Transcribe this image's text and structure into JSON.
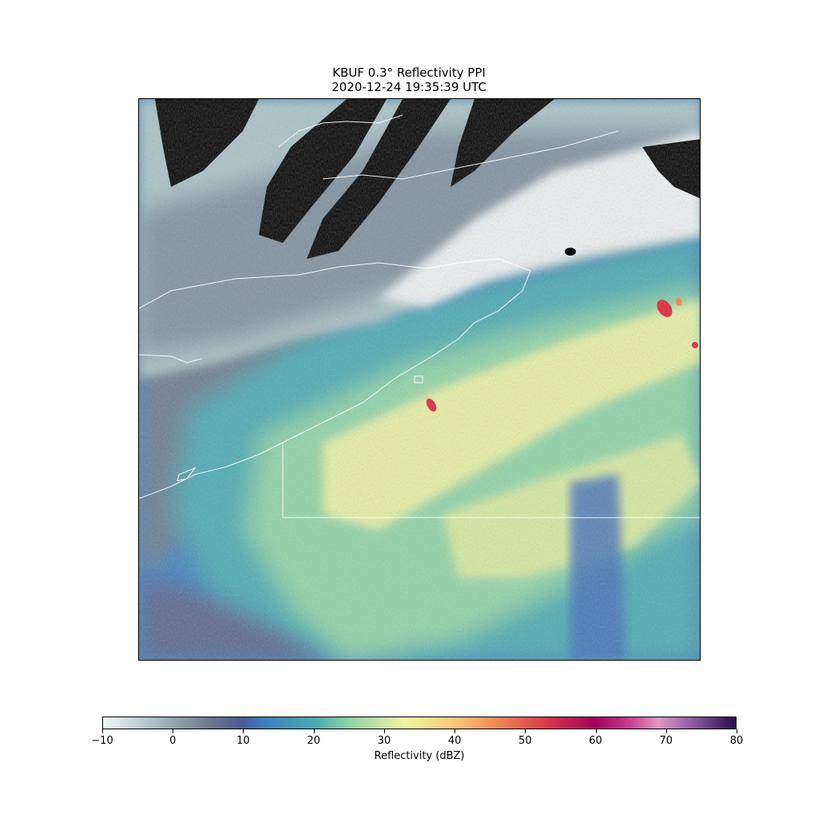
{
  "figure": {
    "title_line1": "KBUF 0.3° Reflectivity PPI",
    "title_line2": "2020-12-24 19:35:39 UTC"
  },
  "colorbar": {
    "label": "Reflectivity (dBZ)",
    "ticks": [
      "−10",
      "0",
      "10",
      "20",
      "30",
      "40",
      "50",
      "60",
      "70",
      "80"
    ],
    "min": -10,
    "max": 80,
    "stops": [
      {
        "value": -10,
        "color": "#f4f8f8"
      },
      {
        "value": -3,
        "color": "#a9c2c6"
      },
      {
        "value": 5,
        "color": "#6c7b8e"
      },
      {
        "value": 10,
        "color": "#4a5a94"
      },
      {
        "value": 13,
        "color": "#3f7fbf"
      },
      {
        "value": 20,
        "color": "#4aa9b2"
      },
      {
        "value": 25,
        "color": "#8fd3a6"
      },
      {
        "value": 33,
        "color": "#f2f4a4"
      },
      {
        "value": 40,
        "color": "#fbc77a"
      },
      {
        "value": 46,
        "color": "#f08a58"
      },
      {
        "value": 53,
        "color": "#d93b4a"
      },
      {
        "value": 60,
        "color": "#a2005a"
      },
      {
        "value": 65,
        "color": "#c8408f"
      },
      {
        "value": 69,
        "color": "#e396c4"
      },
      {
        "value": 74,
        "color": "#8c5aa8"
      },
      {
        "value": 80,
        "color": "#2a0a4a"
      }
    ]
  },
  "map": {
    "radar_site": "KBUF",
    "no_echo_color": "#000000",
    "border_color": "#ffffff"
  }
}
